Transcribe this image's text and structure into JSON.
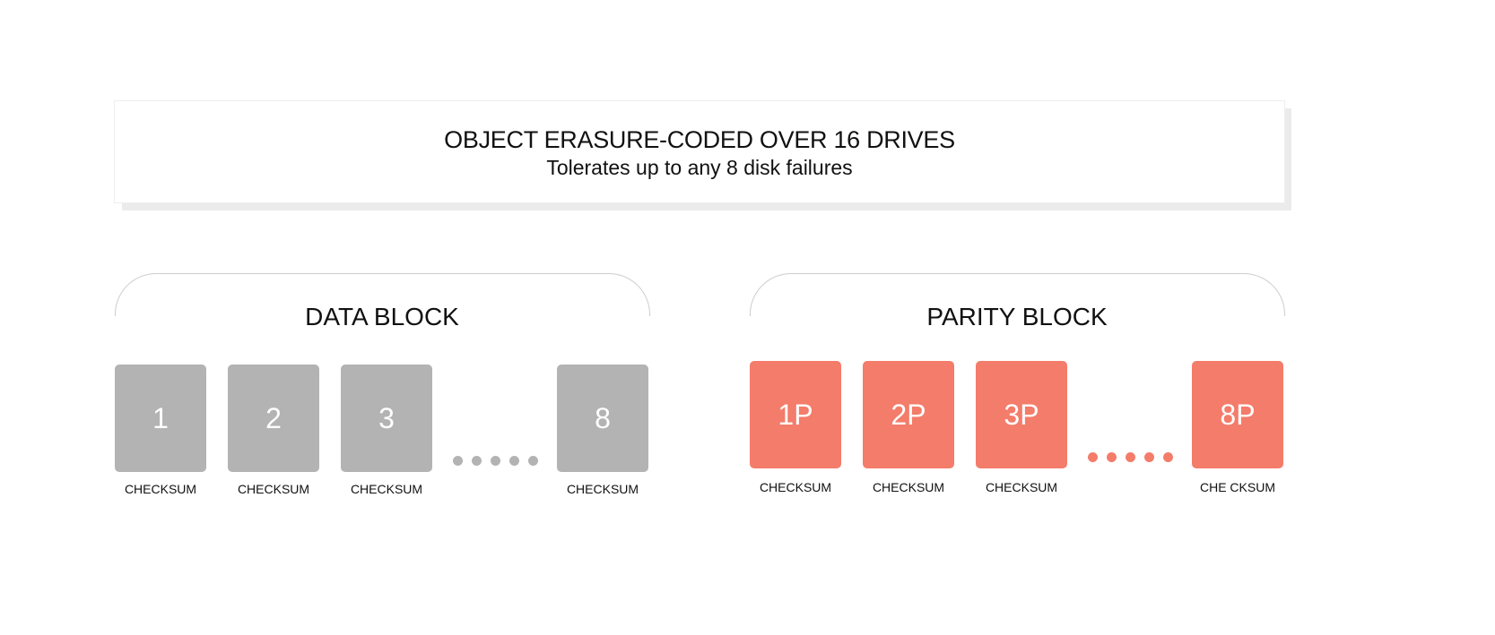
{
  "header": {
    "title": "OBJECT ERASURE-CODED OVER 16 DRIVES",
    "subtitle": "Tolerates up to any 8 disk failures"
  },
  "colors": {
    "data": "#b3b3b3",
    "parity": "#f47c6a",
    "shadow": "#ebebeb"
  },
  "data_block": {
    "label": "DATA BLOCK",
    "drives": [
      {
        "id": "1",
        "checksum": "CHECKSUM"
      },
      {
        "id": "2",
        "checksum": "CHECKSUM"
      },
      {
        "id": "3",
        "checksum": "CHECKSUM"
      },
      {
        "id": "8",
        "checksum": "CHECKSUM"
      }
    ]
  },
  "parity_block": {
    "label": "PARITY BLOCK",
    "drives": [
      {
        "id": "1P",
        "checksum": "CHECKSUM"
      },
      {
        "id": "2P",
        "checksum": "CHECKSUM"
      },
      {
        "id": "3P",
        "checksum": "CHECKSUM"
      },
      {
        "id": "8P",
        "checksum": "CHE CKSUM"
      }
    ]
  }
}
